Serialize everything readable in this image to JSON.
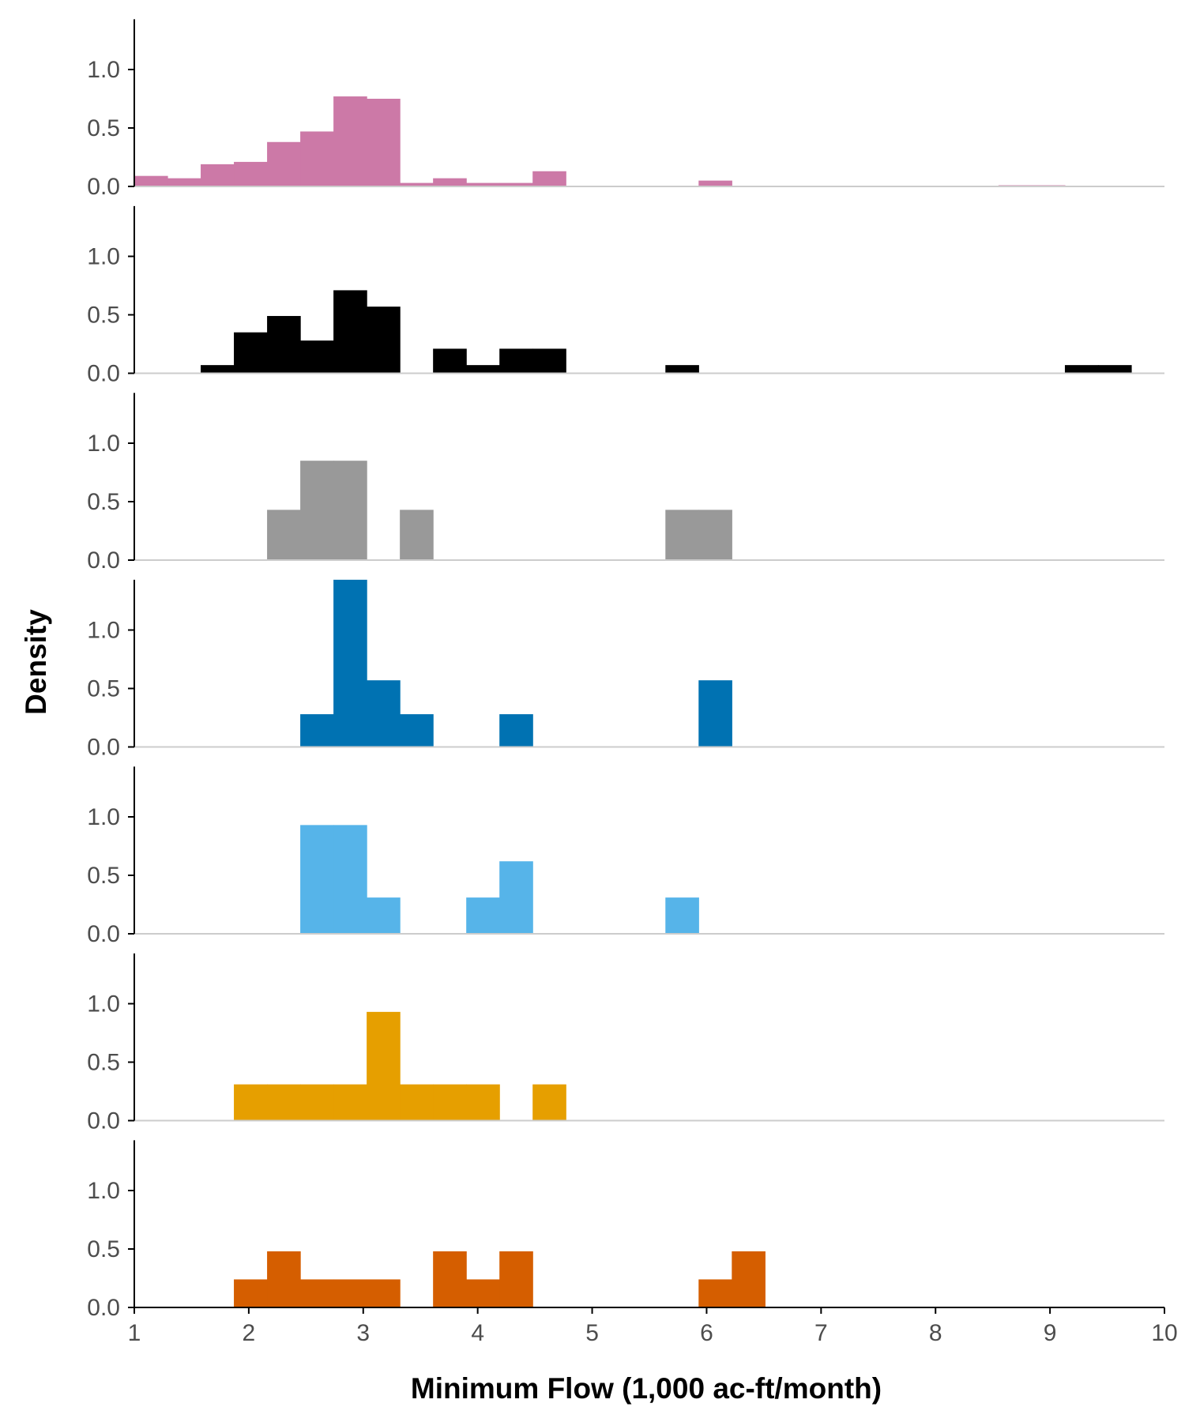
{
  "chart_data": {
    "type": "bar",
    "subtype": "faceted-histogram",
    "xlabel": "Minimum Flow (1,000 ac-ft/month)",
    "ylabel": "Density",
    "xlim": [
      1,
      10
    ],
    "ylim": [
      0,
      1.43
    ],
    "x_ticks": [
      "1",
      "2",
      "3",
      "4",
      "5",
      "6",
      "7",
      "8",
      "9",
      "10"
    ],
    "y_ticks": [
      "0.0",
      "0.5",
      "1.0"
    ],
    "bin_width": 0.29,
    "baseline_color": "#cccccc",
    "axis_color": "#000000",
    "panels": [
      {
        "color": "#CC79A7",
        "bins": [
          {
            "x0": 1.0,
            "x1": 1.29,
            "y": 0.09
          },
          {
            "x0": 1.29,
            "x1": 1.58,
            "y": 0.07
          },
          {
            "x0": 1.58,
            "x1": 1.87,
            "y": 0.19
          },
          {
            "x0": 1.87,
            "x1": 2.16,
            "y": 0.21
          },
          {
            "x0": 2.16,
            "x1": 2.45,
            "y": 0.38
          },
          {
            "x0": 2.45,
            "x1": 2.74,
            "y": 0.47
          },
          {
            "x0": 2.74,
            "x1": 3.03,
            "y": 0.77
          },
          {
            "x0": 3.03,
            "x1": 3.32,
            "y": 0.75
          },
          {
            "x0": 3.32,
            "x1": 3.61,
            "y": 0.03
          },
          {
            "x0": 3.61,
            "x1": 3.9,
            "y": 0.07
          },
          {
            "x0": 3.9,
            "x1": 4.19,
            "y": 0.03
          },
          {
            "x0": 4.19,
            "x1": 4.48,
            "y": 0.03
          },
          {
            "x0": 4.48,
            "x1": 4.77,
            "y": 0.13
          },
          {
            "x0": 5.93,
            "x1": 6.22,
            "y": 0.05
          },
          {
            "x0": 8.55,
            "x1": 8.84,
            "y": 0.01
          },
          {
            "x0": 8.84,
            "x1": 9.13,
            "y": 0.01
          }
        ]
      },
      {
        "color": "#000000",
        "bins": [
          {
            "x0": 1.58,
            "x1": 1.87,
            "y": 0.07
          },
          {
            "x0": 1.87,
            "x1": 2.16,
            "y": 0.35
          },
          {
            "x0": 2.16,
            "x1": 2.45,
            "y": 0.49
          },
          {
            "x0": 2.45,
            "x1": 2.74,
            "y": 0.28
          },
          {
            "x0": 2.74,
            "x1": 3.03,
            "y": 0.71
          },
          {
            "x0": 3.03,
            "x1": 3.32,
            "y": 0.57
          },
          {
            "x0": 3.61,
            "x1": 3.9,
            "y": 0.21
          },
          {
            "x0": 3.9,
            "x1": 4.19,
            "y": 0.07
          },
          {
            "x0": 4.19,
            "x1": 4.48,
            "y": 0.21
          },
          {
            "x0": 4.48,
            "x1": 4.77,
            "y": 0.21
          },
          {
            "x0": 5.64,
            "x1": 5.93,
            "y": 0.07
          },
          {
            "x0": 9.13,
            "x1": 9.42,
            "y": 0.07
          },
          {
            "x0": 9.42,
            "x1": 9.71,
            "y": 0.07
          }
        ]
      },
      {
        "color": "#999999",
        "bins": [
          {
            "x0": 2.16,
            "x1": 2.45,
            "y": 0.43
          },
          {
            "x0": 2.45,
            "x1": 2.74,
            "y": 0.85
          },
          {
            "x0": 2.74,
            "x1": 3.03,
            "y": 0.85
          },
          {
            "x0": 3.32,
            "x1": 3.61,
            "y": 0.43
          },
          {
            "x0": 5.64,
            "x1": 5.93,
            "y": 0.43
          },
          {
            "x0": 5.93,
            "x1": 6.22,
            "y": 0.43
          }
        ]
      },
      {
        "color": "#0072B2",
        "bins": [
          {
            "x0": 2.45,
            "x1": 2.74,
            "y": 0.28
          },
          {
            "x0": 2.74,
            "x1": 3.03,
            "y": 1.43
          },
          {
            "x0": 3.03,
            "x1": 3.32,
            "y": 0.57
          },
          {
            "x0": 3.32,
            "x1": 3.61,
            "y": 0.28
          },
          {
            "x0": 4.19,
            "x1": 4.48,
            "y": 0.28
          },
          {
            "x0": 5.93,
            "x1": 6.22,
            "y": 0.57
          }
        ]
      },
      {
        "color": "#56B4E9",
        "bins": [
          {
            "x0": 2.45,
            "x1": 2.74,
            "y": 0.93
          },
          {
            "x0": 2.74,
            "x1": 3.03,
            "y": 0.93
          },
          {
            "x0": 3.03,
            "x1": 3.32,
            "y": 0.31
          },
          {
            "x0": 3.9,
            "x1": 4.19,
            "y": 0.31
          },
          {
            "x0": 4.19,
            "x1": 4.48,
            "y": 0.62
          },
          {
            "x0": 5.64,
            "x1": 5.93,
            "y": 0.31
          }
        ]
      },
      {
        "color": "#E69F00",
        "bins": [
          {
            "x0": 1.87,
            "x1": 2.16,
            "y": 0.31
          },
          {
            "x0": 2.16,
            "x1": 2.45,
            "y": 0.31
          },
          {
            "x0": 2.45,
            "x1": 2.74,
            "y": 0.31
          },
          {
            "x0": 2.74,
            "x1": 3.03,
            "y": 0.31
          },
          {
            "x0": 3.03,
            "x1": 3.32,
            "y": 0.93
          },
          {
            "x0": 3.32,
            "x1": 3.61,
            "y": 0.31
          },
          {
            "x0": 3.61,
            "x1": 3.9,
            "y": 0.31
          },
          {
            "x0": 3.9,
            "x1": 4.19,
            "y": 0.31
          },
          {
            "x0": 4.48,
            "x1": 4.77,
            "y": 0.31
          }
        ]
      },
      {
        "color": "#D55E00",
        "bins": [
          {
            "x0": 1.87,
            "x1": 2.16,
            "y": 0.24
          },
          {
            "x0": 2.16,
            "x1": 2.45,
            "y": 0.48
          },
          {
            "x0": 2.45,
            "x1": 2.74,
            "y": 0.24
          },
          {
            "x0": 2.74,
            "x1": 3.03,
            "y": 0.24
          },
          {
            "x0": 3.03,
            "x1": 3.32,
            "y": 0.24
          },
          {
            "x0": 3.61,
            "x1": 3.9,
            "y": 0.48
          },
          {
            "x0": 3.9,
            "x1": 4.19,
            "y": 0.24
          },
          {
            "x0": 4.19,
            "x1": 4.48,
            "y": 0.48
          },
          {
            "x0": 5.93,
            "x1": 6.22,
            "y": 0.24
          },
          {
            "x0": 6.22,
            "x1": 6.51,
            "y": 0.48
          }
        ]
      }
    ]
  }
}
